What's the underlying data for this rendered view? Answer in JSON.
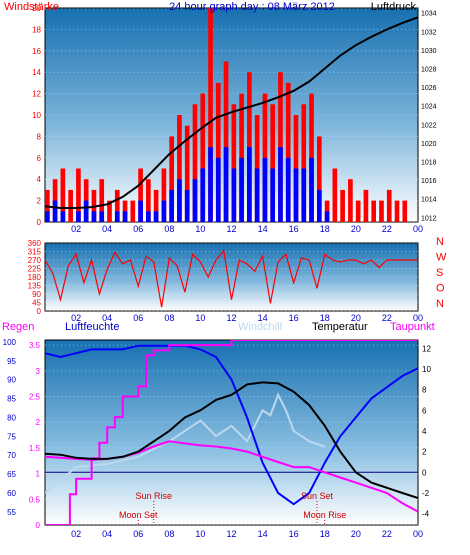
{
  "title": "24 hour graph day : 08 März 2012",
  "x_ticks": [
    "02",
    "04",
    "06",
    "08",
    "10",
    "12",
    "14",
    "16",
    "18",
    "20",
    "22",
    "00"
  ],
  "chart_data": [
    {
      "id": "wind-pressure",
      "type": "bar",
      "left_label": "Windstärke",
      "right_label": "Luftdruck",
      "left_ticks": [
        "0",
        "2",
        "4",
        "6",
        "8",
        "10",
        "12",
        "14",
        "16",
        "18",
        "20"
      ],
      "right_ticks": [
        "1012",
        "1014",
        "1016",
        "1018",
        "1020",
        "1022",
        "1024",
        "1026",
        "1028",
        "1030",
        "1032",
        "1034"
      ],
      "ylim_left": [
        0,
        20
      ],
      "ylim_right": [
        1011.5,
        1034.5
      ],
      "series": [
        {
          "name": "gust",
          "color": "#ff0000",
          "x": [
            0,
            0.5,
            1,
            1.5,
            2,
            2.5,
            3,
            3.5,
            4,
            4.5,
            5,
            5.5,
            6,
            6.5,
            7,
            7.5,
            8,
            8.5,
            9,
            9.5,
            10,
            10.5,
            11,
            11.5,
            12,
            12.5,
            13,
            13.5,
            14,
            14.5,
            15,
            15.5,
            16,
            16.5,
            17,
            17.5,
            18,
            18.5,
            19,
            19.5,
            20,
            20.5,
            21,
            21.5,
            22,
            22.5,
            23,
            23.5
          ],
          "values": [
            3,
            4,
            5,
            3,
            5,
            4,
            3,
            4,
            2,
            3,
            2,
            2,
            5,
            4,
            3,
            5,
            8,
            10,
            9,
            11,
            12,
            20,
            13,
            15,
            11,
            12,
            14,
            10,
            12,
            11,
            14,
            13,
            10,
            11,
            12,
            8,
            2,
            5,
            3,
            4,
            2,
            3,
            2,
            2,
            3,
            2,
            2,
            0
          ]
        },
        {
          "name": "wind",
          "color": "#0000ff",
          "x": [
            0,
            0.5,
            1,
            1.5,
            2,
            2.5,
            3,
            3.5,
            4,
            4.5,
            5,
            5.5,
            6,
            6.5,
            7,
            7.5,
            8,
            8.5,
            9,
            9.5,
            10,
            10.5,
            11,
            11.5,
            12,
            12.5,
            13,
            13.5,
            14,
            14.5,
            15,
            15.5,
            16,
            16.5,
            17,
            17.5,
            18,
            18.5,
            19,
            19.5,
            20,
            20.5,
            21,
            21.5,
            22,
            22.5,
            23,
            23.5
          ],
          "values": [
            1,
            2,
            1,
            0,
            1,
            2,
            1,
            1,
            0,
            1,
            1,
            0,
            2,
            1,
            1,
            2,
            3,
            4,
            3,
            4,
            5,
            7,
            6,
            7,
            5,
            6,
            7,
            5,
            6,
            5,
            7,
            6,
            5,
            5,
            6,
            3,
            1,
            0,
            0,
            0,
            0,
            0,
            0,
            0,
            0,
            0,
            0,
            0
          ]
        },
        {
          "name": "pressure",
          "color": "#000000",
          "x": [
            0,
            1,
            2,
            3,
            4,
            5,
            6,
            7,
            8,
            9,
            10,
            11,
            12,
            13,
            14,
            15,
            16,
            17,
            18,
            19,
            20,
            21,
            22,
            23,
            24
          ],
          "values": [
            1013.2,
            1013.0,
            1013.0,
            1013.1,
            1013.4,
            1014.2,
            1015.4,
            1017.1,
            1018.8,
            1020.2,
            1021.5,
            1022.7,
            1023.3,
            1023.8,
            1024.3,
            1024.9,
            1025.6,
            1026.6,
            1028.0,
            1029.4,
            1030.5,
            1031.4,
            1032.2,
            1032.9,
            1033.5
          ]
        }
      ]
    },
    {
      "id": "wind-direction",
      "type": "line",
      "left_ticks": [
        "0",
        "45",
        "90",
        "135",
        "180",
        "225",
        "270",
        "315",
        "360"
      ],
      "right_labels": [
        "N",
        "W",
        "S",
        "O",
        "N"
      ],
      "ylim": [
        0,
        360
      ],
      "series": [
        {
          "name": "direction",
          "color": "#ff0000",
          "x": [
            0,
            0.5,
            1,
            1.5,
            2,
            2.5,
            3,
            3.5,
            4,
            4.5,
            5,
            5.5,
            6,
            6.5,
            7,
            7.5,
            8,
            8.5,
            9,
            9.5,
            10,
            10.5,
            11,
            11.5,
            12,
            12.5,
            13,
            13.5,
            14,
            14.5,
            15,
            15.5,
            16,
            16.5,
            17,
            17.5,
            18,
            18.5,
            19,
            19.5,
            20,
            20.5,
            21,
            21.5,
            22,
            22.5,
            23,
            23.5,
            24
          ],
          "values": [
            270,
            200,
            60,
            240,
            300,
            150,
            270,
            90,
            220,
            310,
            250,
            270,
            130,
            290,
            260,
            20,
            280,
            240,
            100,
            300,
            260,
            180,
            270,
            320,
            60,
            270,
            250,
            210,
            290,
            40,
            260,
            300,
            150,
            280,
            270,
            120,
            300,
            270,
            260,
            270,
            270,
            250,
            270,
            230,
            270,
            270,
            270,
            270,
            270
          ]
        }
      ]
    },
    {
      "id": "humidity-temperature",
      "type": "line",
      "labels": {
        "rain": "Regen",
        "humidity": "Luftfeuchte",
        "windchill": "Windchill",
        "temperature": "Temperatur",
        "dewpoint": "Taupunkt"
      },
      "rain_ticks": [
        "0",
        "0.5",
        "1",
        "1.5",
        "2",
        "2.5",
        "3",
        "3.5"
      ],
      "humidity_ticks": [
        "55",
        "60",
        "65",
        "70",
        "75",
        "80",
        "85",
        "90",
        "95",
        "100"
      ],
      "temp_ticks": [
        "-4",
        "-2",
        "0",
        "2",
        "4",
        "6",
        "8",
        "10",
        "12"
      ],
      "ylim_rain": [
        0,
        3.6
      ],
      "ylim_humidity": [
        51.5,
        100.5
      ],
      "ylim_temp": [
        -5.1,
        12.8
      ],
      "annotations": [
        "Sun Rise",
        "Sun Set",
        "Moon Set",
        "Moon Rise"
      ],
      "series": [
        {
          "name": "humidity",
          "color": "#0000ff",
          "x": [
            0,
            1,
            2,
            3,
            4,
            5,
            6,
            7,
            8,
            9,
            10,
            11,
            12,
            13,
            14,
            15,
            16,
            17,
            18,
            19,
            20,
            21,
            22,
            23,
            24
          ],
          "values": [
            97,
            96,
            97,
            98,
            98,
            98,
            99,
            99,
            99,
            99,
            98,
            96,
            90,
            80,
            68,
            60,
            57,
            60,
            68,
            75,
            80,
            85,
            88,
            91,
            93
          ]
        },
        {
          "name": "rain",
          "color": "#ff00ff",
          "x": [
            0,
            1,
            1.6,
            2,
            3,
            3.5,
            4,
            4.5,
            5,
            6,
            6.5,
            7,
            8,
            12,
            24
          ],
          "values": [
            0,
            0,
            0.6,
            0.9,
            1.3,
            1.6,
            1.9,
            2.1,
            2.5,
            2.7,
            3.3,
            3.4,
            3.5,
            3.6,
            3.6
          ]
        },
        {
          "name": "temperature",
          "color": "#000000",
          "x": [
            0,
            1,
            2,
            3,
            4,
            5,
            6,
            7,
            8,
            9,
            10,
            11,
            12,
            13,
            14,
            15,
            16,
            17,
            18,
            19,
            20,
            21,
            22,
            23,
            24
          ],
          "values": [
            1.8,
            1.7,
            1.4,
            1.3,
            1.3,
            1.5,
            2.0,
            3.0,
            4.0,
            5.3,
            6.0,
            7.0,
            7.5,
            8.5,
            8.7,
            8.6,
            7.8,
            6.5,
            4.5,
            2.0,
            0.0,
            -1.0,
            -1.5,
            -2.0,
            -2.5
          ]
        },
        {
          "name": "dewpoint",
          "color": "#ff00ff",
          "x": [
            0,
            1,
            2,
            3,
            4,
            5,
            6,
            7,
            8,
            9,
            10,
            11,
            12,
            13,
            14,
            15,
            16,
            17,
            18,
            19,
            20,
            21,
            22,
            23,
            24
          ],
          "values": [
            1.5,
            1.4,
            1.3,
            1.2,
            1.3,
            1.5,
            1.9,
            2.5,
            3.0,
            2.8,
            2.6,
            2.5,
            2.3,
            2.0,
            1.5,
            1.0,
            0.5,
            0.5,
            0.0,
            -0.5,
            -1.0,
            -1.5,
            -2.0,
            -3.0,
            -3.8
          ]
        },
        {
          "name": "windchill",
          "color": "#bcd8ee",
          "x": [
            0,
            2,
            4,
            6,
            8,
            10,
            11,
            12,
            13,
            14,
            14.5,
            15,
            15.5,
            16,
            17,
            18
          ],
          "values": [
            -2,
            0.5,
            0.8,
            1.5,
            3.0,
            5.0,
            3.5,
            4.5,
            3.0,
            6.0,
            5.5,
            7.5,
            6.0,
            4.0,
            3.0,
            2.5
          ]
        }
      ]
    }
  ]
}
